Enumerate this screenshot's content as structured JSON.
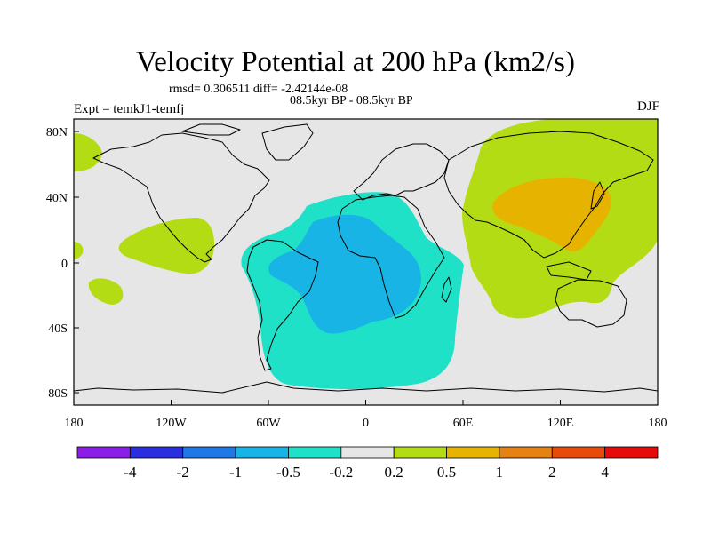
{
  "title": "Velocity Potential at 200 hPa (km2/s)",
  "stats_text": "rmsd= 0.306511 diff= -2.42144e-08",
  "period_text": "08.5kyr BP - 08.5kyr BP",
  "expt_text": "Expt = temkJ1-temfj",
  "season_text": "DJF",
  "x_tick_labels": [
    "180",
    "120W",
    "60W",
    "0",
    "60E",
    "120E",
    "180"
  ],
  "y_tick_labels": [
    "80N",
    "40N",
    "0",
    "40S",
    "80S"
  ],
  "colorbar": {
    "colors": [
      "#8a1ee6",
      "#2d2de0",
      "#1e78e6",
      "#19b4e6",
      "#1ee1c8",
      "#e6e6e6",
      "#b4dc14",
      "#e6b400",
      "#e68214",
      "#e64b0a",
      "#e60a0a"
    ],
    "labels": [
      "-4",
      "-2",
      "-1",
      "-0.5",
      "-0.2",
      "0.2",
      "0.5",
      "1",
      "2",
      "4"
    ]
  }
}
